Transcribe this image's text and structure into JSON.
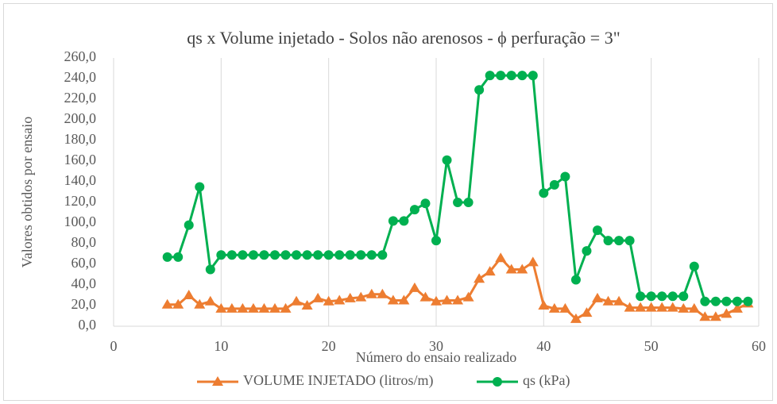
{
  "chart_data": {
    "type": "line",
    "title": "qs  x Volume injetado - Solos não arenosos - ϕ perfuração = 3\"",
    "x_label": "Número do ensaio realizado",
    "y_label": "Valores obtidos por ensaio",
    "x": [
      5,
      6,
      7,
      8,
      9,
      10,
      11,
      12,
      13,
      14,
      15,
      16,
      17,
      18,
      19,
      20,
      21,
      22,
      23,
      24,
      25,
      26,
      27,
      28,
      29,
      30,
      31,
      32,
      33,
      34,
      35,
      36,
      37,
      38,
      39,
      40,
      41,
      42,
      43,
      44,
      45,
      46,
      47,
      48,
      49,
      50,
      51,
      52,
      53,
      54,
      55,
      56,
      57,
      58,
      59
    ],
    "series": [
      {
        "name": "VOLUME INJETADO (litros/m)",
        "color": "#ed7d31",
        "marker": "triangle",
        "values": [
          21,
          21,
          30,
          21,
          24,
          17,
          17,
          17,
          17,
          17,
          17,
          17,
          24,
          20,
          27,
          24,
          25,
          27,
          28,
          31,
          31,
          25,
          25,
          37,
          28,
          24,
          25,
          25,
          28,
          46,
          53,
          66,
          55,
          55,
          62,
          20,
          17,
          17,
          7,
          13,
          27,
          24,
          24,
          18,
          18,
          18,
          18,
          18,
          17,
          17,
          9,
          9,
          12,
          17,
          22
        ]
      },
      {
        "name": "qs (kPa)",
        "color": "#00b050",
        "marker": "circle",
        "values": [
          67,
          67,
          98,
          135,
          55,
          69,
          69,
          69,
          69,
          69,
          69,
          69,
          69,
          69,
          69,
          69,
          69,
          69,
          69,
          69,
          69,
          102,
          102,
          113,
          119,
          83,
          161,
          120,
          120,
          229,
          243,
          243,
          243,
          243,
          243,
          129,
          137,
          145,
          45,
          73,
          93,
          83,
          83,
          83,
          29,
          29,
          29,
          29,
          29,
          58,
          24,
          24,
          24,
          24,
          24
        ]
      }
    ],
    "xlim": [
      0,
      60
    ],
    "xticks": [
      0,
      10,
      20,
      30,
      40,
      50,
      60
    ],
    "ylim": [
      0,
      260
    ],
    "yticks": [
      {
        "value": 0,
        "label": "0,0"
      },
      {
        "value": 20,
        "label": "20,0"
      },
      {
        "value": 40,
        "label": "40,0"
      },
      {
        "value": 60,
        "label": "60,0"
      },
      {
        "value": 80,
        "label": "80,0"
      },
      {
        "value": 100,
        "label": "100,0"
      },
      {
        "value": 120,
        "label": "120,0"
      },
      {
        "value": 140,
        "label": "140,0"
      },
      {
        "value": 160,
        "label": "160,0"
      },
      {
        "value": 180,
        "label": "180,0"
      },
      {
        "value": 200,
        "label": "200,0"
      },
      {
        "value": 220,
        "label": "220,0"
      },
      {
        "value": 240,
        "label": "240,0"
      },
      {
        "value": 260,
        "label": "260,0"
      }
    ],
    "grid": "x",
    "legend": "bottom"
  }
}
